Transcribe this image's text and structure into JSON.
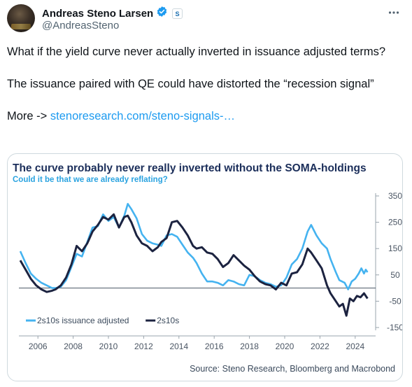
{
  "author": {
    "display_name": "Andreas Steno Larsen",
    "handle": "@AndreasSteno"
  },
  "icons": {
    "verified": "verified-badge-icon",
    "affiliate": "affiliate-badge-icon",
    "more": "more-options-icon"
  },
  "tweet": {
    "line1": "What if the yield curve never actually inverted in issuance adjusted terms?",
    "line2": "The issuance paired with QE could have distorted the “recession signal”",
    "more_prefix": "More -> ",
    "link_text": "stenoresearch.com/steno-signals-…"
  },
  "colors": {
    "accent": "#1d9bf0",
    "title": "#1b2e5a",
    "subtitle": "#2aa3e0",
    "series_adjusted": "#45b3f0",
    "series_raw": "#1c2340"
  },
  "chart_data": {
    "type": "line",
    "title": "The curve probably never really inverted without the SOMA-holdings",
    "subtitle": "Could it be that we are already reflating?",
    "source": "Source: Steno Research, Bloomberg and Macrobond",
    "x_ticks": [
      "2006",
      "2008",
      "2010",
      "2012",
      "2014",
      "2016",
      "2018",
      "2020",
      "2022",
      "2024"
    ],
    "y_ticks": [
      "350",
      "250",
      "150",
      "50",
      "-50",
      "-150"
    ],
    "xlim": [
      2005,
      2025
    ],
    "ylim": [
      -150,
      350
    ],
    "legend_position": "bottom-left",
    "series": [
      {
        "name": "2s10s issuance adjusted",
        "points": [
          [
            2005.0,
            140
          ],
          [
            2005.3,
            95
          ],
          [
            2005.6,
            55
          ],
          [
            2005.9,
            35
          ],
          [
            2006.2,
            20
          ],
          [
            2006.5,
            10
          ],
          [
            2006.8,
            0
          ],
          [
            2007.0,
            0
          ],
          [
            2007.3,
            5
          ],
          [
            2007.6,
            30
          ],
          [
            2007.9,
            80
          ],
          [
            2008.2,
            130
          ],
          [
            2008.5,
            120
          ],
          [
            2008.8,
            175
          ],
          [
            2009.1,
            230
          ],
          [
            2009.4,
            235
          ],
          [
            2009.7,
            280
          ],
          [
            2010.0,
            255
          ],
          [
            2010.3,
            270
          ],
          [
            2010.6,
            230
          ],
          [
            2010.9,
            275
          ],
          [
            2011.1,
            320
          ],
          [
            2011.3,
            300
          ],
          [
            2011.6,
            265
          ],
          [
            2011.9,
            205
          ],
          [
            2012.2,
            180
          ],
          [
            2012.5,
            170
          ],
          [
            2012.8,
            165
          ],
          [
            2013.0,
            160
          ],
          [
            2013.3,
            200
          ],
          [
            2013.6,
            205
          ],
          [
            2013.9,
            195
          ],
          [
            2014.2,
            165
          ],
          [
            2014.5,
            135
          ],
          [
            2014.8,
            115
          ],
          [
            2015.0,
            95
          ],
          [
            2015.3,
            55
          ],
          [
            2015.6,
            25
          ],
          [
            2015.9,
            25
          ],
          [
            2016.2,
            20
          ],
          [
            2016.5,
            10
          ],
          [
            2016.8,
            30
          ],
          [
            2017.1,
            25
          ],
          [
            2017.4,
            15
          ],
          [
            2017.7,
            10
          ],
          [
            2018.0,
            50
          ],
          [
            2018.3,
            45
          ],
          [
            2018.6,
            30
          ],
          [
            2018.9,
            20
          ],
          [
            2019.2,
            15
          ],
          [
            2019.5,
            5
          ],
          [
            2019.8,
            10
          ],
          [
            2020.1,
            40
          ],
          [
            2020.4,
            90
          ],
          [
            2020.7,
            110
          ],
          [
            2021.0,
            150
          ],
          [
            2021.3,
            215
          ],
          [
            2021.5,
            240
          ],
          [
            2021.8,
            200
          ],
          [
            2022.1,
            170
          ],
          [
            2022.4,
            150
          ],
          [
            2022.6,
            110
          ],
          [
            2022.9,
            60
          ],
          [
            2023.1,
            30
          ],
          [
            2023.4,
            20
          ],
          [
            2023.6,
            -5
          ],
          [
            2023.8,
            25
          ],
          [
            2024.0,
            35
          ],
          [
            2024.2,
            55
          ],
          [
            2024.35,
            75
          ],
          [
            2024.5,
            55
          ],
          [
            2024.6,
            70
          ],
          [
            2024.7,
            60
          ]
        ]
      },
      {
        "name": "2s10s",
        "points": [
          [
            2005.0,
            105
          ],
          [
            2005.3,
            70
          ],
          [
            2005.6,
            35
          ],
          [
            2005.9,
            10
          ],
          [
            2006.2,
            -5
          ],
          [
            2006.5,
            -15
          ],
          [
            2006.8,
            -10
          ],
          [
            2007.0,
            -5
          ],
          [
            2007.3,
            10
          ],
          [
            2007.6,
            40
          ],
          [
            2007.9,
            90
          ],
          [
            2008.2,
            160
          ],
          [
            2008.5,
            140
          ],
          [
            2008.8,
            170
          ],
          [
            2009.1,
            215
          ],
          [
            2009.4,
            240
          ],
          [
            2009.7,
            270
          ],
          [
            2010.0,
            260
          ],
          [
            2010.3,
            280
          ],
          [
            2010.6,
            230
          ],
          [
            2010.9,
            270
          ],
          [
            2011.1,
            275
          ],
          [
            2011.3,
            250
          ],
          [
            2011.6,
            200
          ],
          [
            2011.9,
            170
          ],
          [
            2012.2,
            160
          ],
          [
            2012.5,
            140
          ],
          [
            2012.8,
            155
          ],
          [
            2013.0,
            175
          ],
          [
            2013.3,
            190
          ],
          [
            2013.6,
            250
          ],
          [
            2013.9,
            255
          ],
          [
            2014.2,
            230
          ],
          [
            2014.5,
            200
          ],
          [
            2014.8,
            160
          ],
          [
            2015.0,
            150
          ],
          [
            2015.3,
            155
          ],
          [
            2015.6,
            135
          ],
          [
            2015.9,
            130
          ],
          [
            2016.2,
            110
          ],
          [
            2016.5,
            80
          ],
          [
            2016.8,
            95
          ],
          [
            2017.1,
            125
          ],
          [
            2017.4,
            105
          ],
          [
            2017.7,
            85
          ],
          [
            2018.0,
            70
          ],
          [
            2018.3,
            45
          ],
          [
            2018.6,
            25
          ],
          [
            2018.9,
            15
          ],
          [
            2019.2,
            10
          ],
          [
            2019.5,
            -5
          ],
          [
            2019.8,
            20
          ],
          [
            2020.1,
            10
          ],
          [
            2020.4,
            55
          ],
          [
            2020.7,
            60
          ],
          [
            2021.0,
            90
          ],
          [
            2021.3,
            150
          ],
          [
            2021.5,
            135
          ],
          [
            2021.8,
            105
          ],
          [
            2022.1,
            75
          ],
          [
            2022.4,
            10
          ],
          [
            2022.6,
            -20
          ],
          [
            2022.9,
            -50
          ],
          [
            2023.1,
            -70
          ],
          [
            2023.3,
            -60
          ],
          [
            2023.5,
            -105
          ],
          [
            2023.7,
            -40
          ],
          [
            2023.9,
            -50
          ],
          [
            2024.1,
            -30
          ],
          [
            2024.3,
            -35
          ],
          [
            2024.5,
            -20
          ],
          [
            2024.7,
            -40
          ]
        ]
      }
    ]
  }
}
